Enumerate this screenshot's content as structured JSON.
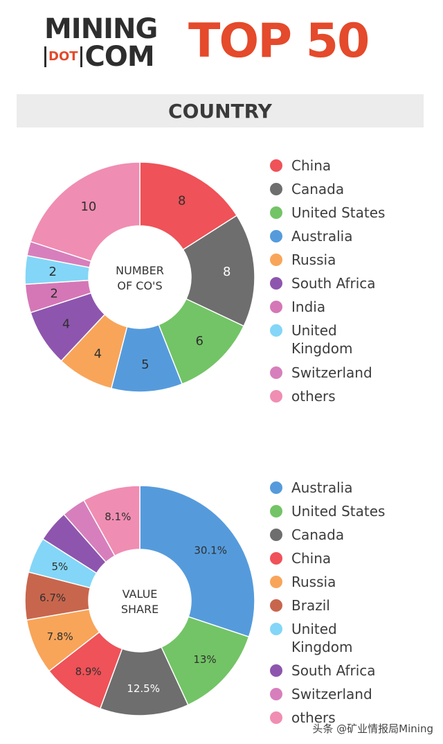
{
  "header": {
    "logo_line1": "MINING",
    "logo_dot": "DOT",
    "logo_com": "COM",
    "title": "TOP 50",
    "banner": "COUNTRY"
  },
  "colors": {
    "China": "#ef5258",
    "Canada": "#6e6e6e",
    "United States": "#73c466",
    "Australia": "#559bdc",
    "Russia": "#f8a55a",
    "South Africa": "#8e55ae",
    "India": "#d577b6",
    "United Kingdom": "#83d6f7",
    "Switzerland": "#d77fbc",
    "others": "#f08db2",
    "Brazil": "#c8664d"
  },
  "chart_data": [
    {
      "type": "pie",
      "center_label": [
        "NUMBER",
        "OF CO'S"
      ],
      "categories": [
        "China",
        "Canada",
        "United States",
        "Australia",
        "Russia",
        "South Africa",
        "India",
        "United Kingdom",
        "Switzerland",
        "others"
      ],
      "values": [
        8,
        8,
        6,
        5,
        4,
        4,
        2,
        2,
        1,
        10
      ],
      "labels": [
        "8",
        "8",
        "6",
        "5",
        "4",
        "4",
        "2",
        "2",
        "",
        "10"
      ],
      "legend": [
        "China",
        "Canada",
        "United States",
        "Australia",
        "Russia",
        "South Africa",
        "India",
        "United Kingdom",
        "Switzerland",
        "others"
      ],
      "legend_placement": "right"
    },
    {
      "type": "pie",
      "center_label": [
        "VALUE",
        "SHARE"
      ],
      "categories": [
        "Australia",
        "United States",
        "Canada",
        "China",
        "Russia",
        "Brazil",
        "United Kingdom",
        "South Africa",
        "Switzerland",
        "others"
      ],
      "values": [
        30.1,
        13,
        12.5,
        8.9,
        7.8,
        6.7,
        5,
        4.5,
        3.4,
        8.1
      ],
      "labels": [
        "30.1%",
        "13%",
        "12.5%",
        "8.9%",
        "7.8%",
        "6.7%",
        "5%",
        "",
        "",
        "8.1%"
      ],
      "legend": [
        "Australia",
        "United States",
        "Canada",
        "China",
        "Russia",
        "Brazil",
        "United Kingdom",
        "South Africa",
        "Switzerland",
        "others"
      ],
      "legend_placement": "right"
    }
  ],
  "watermark": "头条 @矿业情报局Mining"
}
